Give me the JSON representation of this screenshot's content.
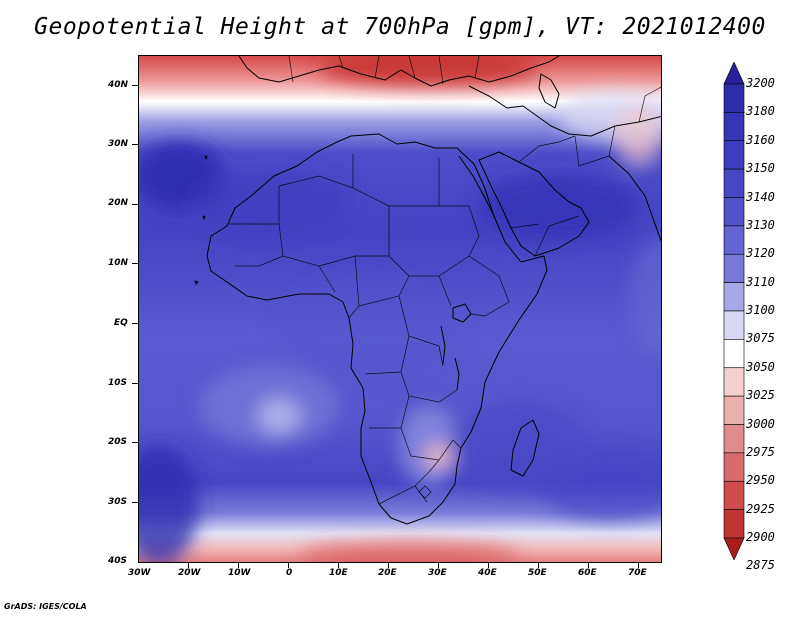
{
  "title": "Geopotential Height at 700hPa [gpm], VT: 2021012400",
  "credit": "GrADS: IGES/COLA",
  "map": {
    "lat_ticks": [
      "40N",
      "30N",
      "20N",
      "10N",
      "EQ",
      "10S",
      "20S",
      "30S",
      "40S"
    ],
    "lon_ticks": [
      "30W",
      "20W",
      "10W",
      "0",
      "10E",
      "20E",
      "30E",
      "40E",
      "50E",
      "60E",
      "70E"
    ],
    "extent": {
      "lon_min": -30,
      "lon_max": 75,
      "lat_min": -40,
      "lat_max": 45
    }
  },
  "colorbar": {
    "levels": [
      "3200",
      "3180",
      "3160",
      "3150",
      "3140",
      "3130",
      "3120",
      "3110",
      "3100",
      "3075",
      "3050",
      "3025",
      "3000",
      "2975",
      "2950",
      "2925",
      "2900",
      "2875"
    ],
    "colors": [
      "#2a1f9a",
      "#2e2ba8",
      "#3535b6",
      "#3d3dc0",
      "#4747c6",
      "#5252cc",
      "#6464d3",
      "#7878da",
      "#a8a8e8",
      "#d8d8f4",
      "#ffffff",
      "#f4d0d0",
      "#eab0b0",
      "#e08c8c",
      "#d86c6c",
      "#cf4c4c",
      "#c23434",
      "#a81c1c"
    ]
  }
}
